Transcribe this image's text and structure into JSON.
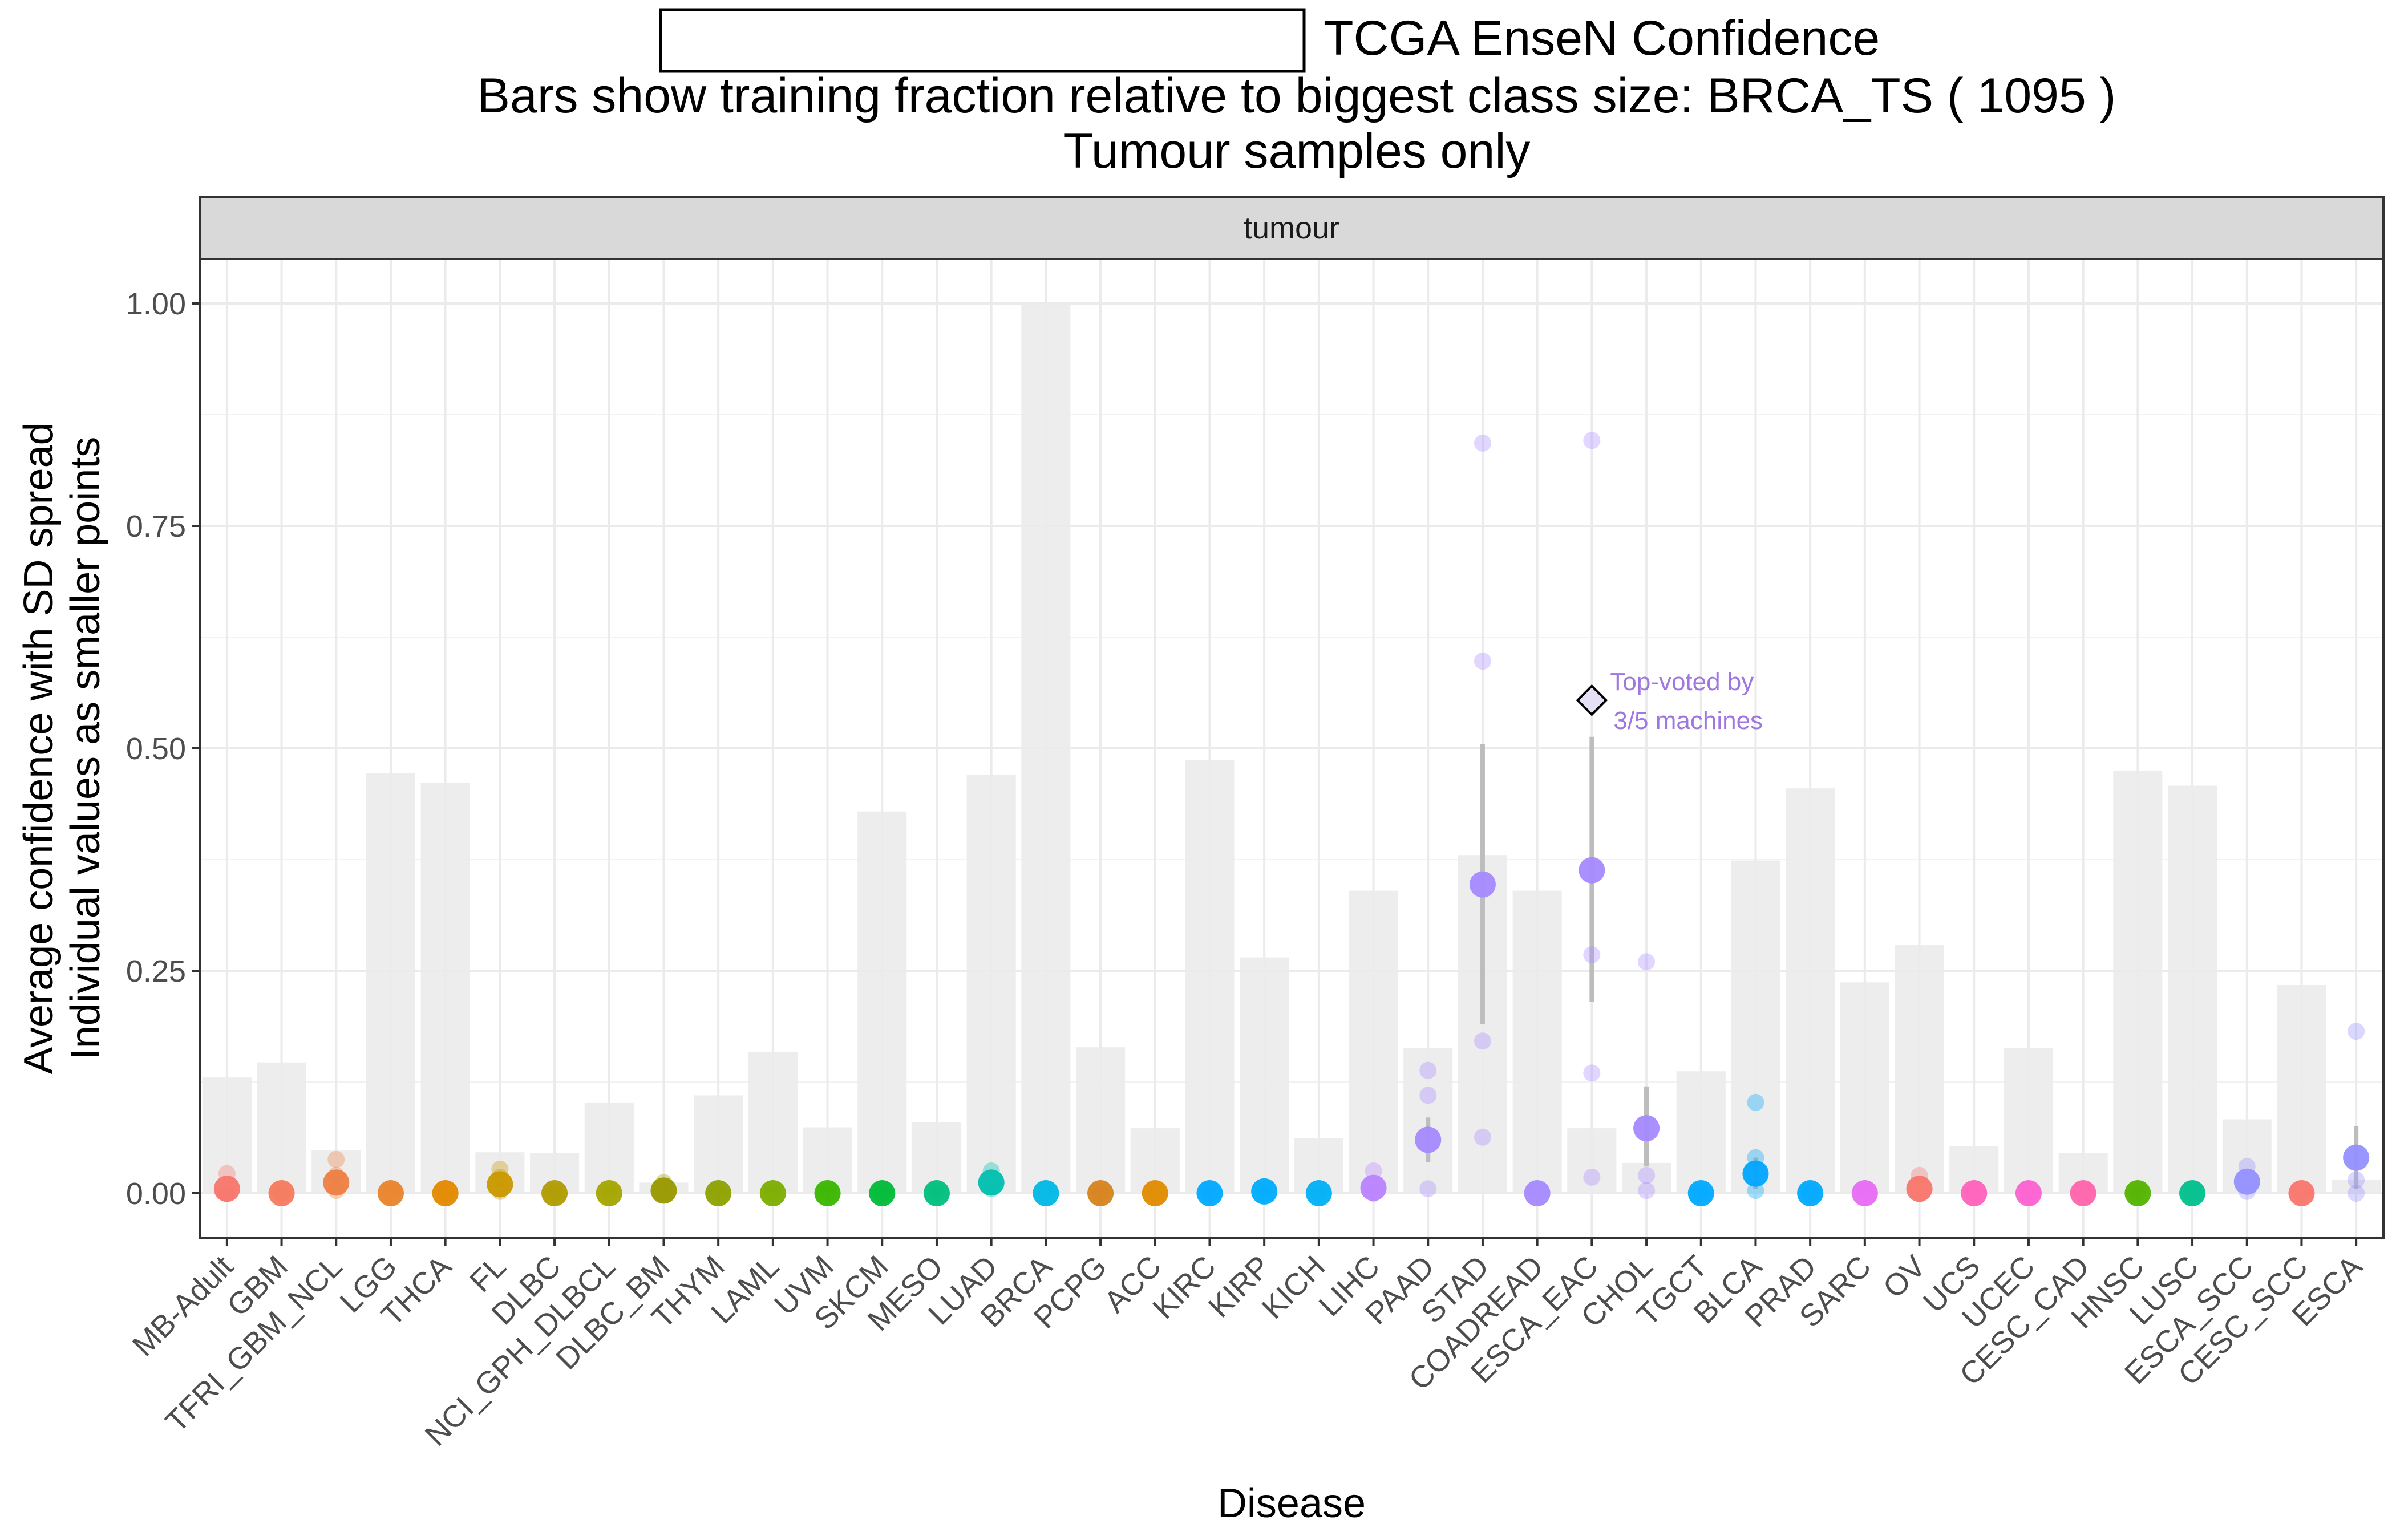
{
  "chart_data": {
    "type": "bar",
    "title_box": "",
    "title": "TCGA EnseN Confidence",
    "subtitle_line1": "Bars show training fraction relative to biggest class size: BRCA_TS ( 1095 )",
    "subtitle_line2": "Tumour samples only",
    "facet_label": "tumour",
    "xlabel": "Disease",
    "ylabel_line1": "Average confidence with SD spread",
    "ylabel_line2": "Individual values as smaller points",
    "ylim": [
      -0.05,
      1.05
    ],
    "yticks": [
      0.0,
      0.25,
      0.5,
      0.75,
      1.0
    ],
    "ytick_labels": [
      "0.00",
      "0.25",
      "0.50",
      "0.75",
      "1.00"
    ],
    "grid": true,
    "categories": [
      "MB-Adult",
      "GBM",
      "TFRI_GBM_NCL",
      "LGG",
      "THCA",
      "FL",
      "DLBC",
      "NCI_GPH_DLBCL",
      "DLBC_BM",
      "THYM",
      "LAML",
      "UVM",
      "SKCM",
      "MESO",
      "LUAD",
      "BRCA",
      "PCPG",
      "ACC",
      "KIRC",
      "KIRP",
      "KICH",
      "LIHC",
      "PAAD",
      "STAD",
      "COADREAD",
      "ESCA_EAC",
      "CHOL",
      "TGCT",
      "BLCA",
      "PRAD",
      "SARC",
      "OV",
      "UCS",
      "UCEC",
      "CESC_CAD",
      "HNSC",
      "LUSC",
      "ESCA_SCC",
      "CESC_SCC",
      "ESCA"
    ],
    "training_fraction": [
      0.13,
      0.147,
      0.048,
      0.472,
      0.461,
      0.046,
      0.045,
      0.102,
      0.012,
      0.11,
      0.159,
      0.074,
      0.429,
      0.08,
      0.47,
      1.0,
      0.164,
      0.073,
      0.487,
      0.265,
      0.062,
      0.34,
      0.163,
      0.38,
      0.34,
      0.073,
      0.034,
      0.137,
      0.374,
      0.455,
      0.237,
      0.279,
      0.053,
      0.163,
      0.045,
      0.475,
      0.458,
      0.083,
      0.234,
      0.015
    ],
    "mean_confidence": [
      0.005,
      0.0,
      0.012,
      0.0,
      0.0,
      0.01,
      0.0,
      0.0,
      0.003,
      0.0,
      0.0,
      0.0,
      0.0,
      0.0,
      0.012,
      0.0,
      0.0,
      0.0,
      0.0,
      0.002,
      0.0,
      0.006,
      0.06,
      0.347,
      0.0,
      0.363,
      0.073,
      0.0,
      0.022,
      0.0,
      0.0,
      0.005,
      0.0,
      0.0,
      0.0,
      0.0,
      0.0,
      0.013,
      0.0,
      0.04
    ],
    "sd_low": [
      null,
      null,
      null,
      null,
      null,
      null,
      null,
      null,
      null,
      null,
      null,
      null,
      null,
      null,
      null,
      null,
      null,
      null,
      null,
      null,
      null,
      null,
      0.035,
      0.19,
      null,
      0.215,
      0.03,
      null,
      0.005,
      null,
      null,
      null,
      null,
      null,
      null,
      null,
      null,
      null,
      null,
      0.005
    ],
    "sd_high": [
      null,
      null,
      null,
      null,
      null,
      null,
      null,
      null,
      null,
      null,
      null,
      null,
      null,
      null,
      null,
      null,
      null,
      null,
      null,
      null,
      null,
      null,
      0.085,
      0.505,
      null,
      0.513,
      0.12,
      null,
      0.04,
      null,
      null,
      null,
      null,
      null,
      null,
      null,
      null,
      null,
      null,
      0.075
    ],
    "individual_values": [
      [
        0.0,
        0.0,
        0.022
      ],
      [
        0.0,
        0.0
      ],
      [
        0.003,
        0.02,
        0.038
      ],
      [
        0.0
      ],
      [
        0.0
      ],
      [
        0.002,
        0.018,
        0.027
      ],
      [
        0.0
      ],
      [
        0.0
      ],
      [
        0.0,
        0.012
      ],
      [
        0.0
      ],
      [
        0.0
      ],
      [
        0.0
      ],
      [
        0.0
      ],
      [
        0.0
      ],
      [
        0.005,
        0.025
      ],
      [
        0.0
      ],
      [
        0.0
      ],
      [
        0.0
      ],
      [
        0.0
      ],
      [
        0.0
      ],
      [
        0.0
      ],
      [
        0.0,
        0.025
      ],
      [
        0.005,
        0.11,
        0.138
      ],
      [
        0.063,
        0.171,
        0.598,
        0.843
      ],
      [
        0.0
      ],
      [
        0.018,
        0.135,
        0.268,
        0.846
      ],
      [
        0.003,
        0.02,
        0.26
      ],
      [
        0.0
      ],
      [
        0.003,
        0.04,
        0.102
      ],
      [
        0.0
      ],
      [
        0.0
      ],
      [
        0.0,
        0.02
      ],
      [
        0.0
      ],
      [
        0.0
      ],
      [
        0.0
      ],
      [
        0.0
      ],
      [
        0.0
      ],
      [
        0.002,
        0.03
      ],
      [
        0.0
      ],
      [
        0.0,
        0.015,
        0.182
      ]
    ],
    "point_colors": [
      "#F8766D",
      "#F47A5F",
      "#EE8043",
      "#E9842C",
      "#E38900",
      "#C99800",
      "#B09C00",
      "#A3A500",
      "#999900",
      "#8EA100",
      "#7CAE00",
      "#39B600",
      "#00BA38",
      "#00BF7D",
      "#00BFAF",
      "#00B8E5",
      "#D6831C",
      "#E08B00",
      "#00A9FF",
      "#00ACFC",
      "#00B0F6",
      "#B983FF",
      "#A58AFF",
      "#A58AFF",
      "#A58AFF",
      "#A58AFF",
      "#A58AFF",
      "#00A9FF",
      "#00A5FF",
      "#00A9FF",
      "#E76BF3",
      "#F8766D",
      "#FF62BC",
      "#FD61D1",
      "#FF65AC",
      "#53B400",
      "#00C08B",
      "#9590FF",
      "#F8766D",
      "#9590FF"
    ],
    "annotation": {
      "category": "ESCA_EAC",
      "value": 0.554,
      "text_line1": "Top-voted by",
      "text_line2": "3/5 machines",
      "color": "#9E77E0"
    },
    "bar_color": "#ebebeb",
    "errorbar_color": "#bdbdbd"
  }
}
